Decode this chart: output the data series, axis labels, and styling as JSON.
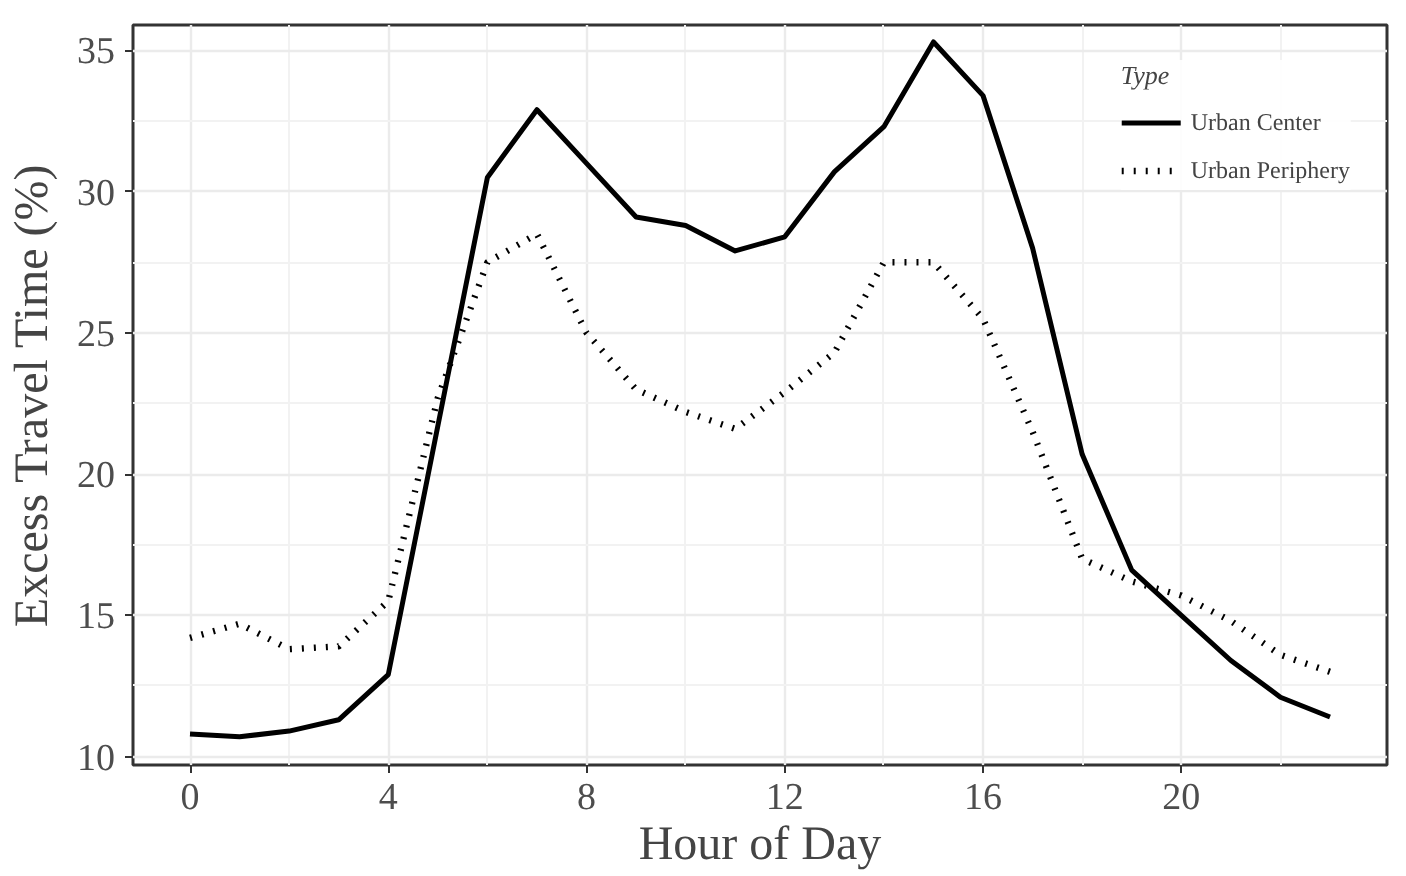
{
  "chart_data": {
    "type": "line",
    "xlabel": "Hour of Day",
    "ylabel": "Excess Travel Time (%)",
    "legend_title": "Type",
    "x": [
      0,
      1,
      2,
      3,
      4,
      5,
      6,
      7,
      8,
      9,
      10,
      11,
      12,
      13,
      14,
      15,
      16,
      17,
      18,
      19,
      20,
      21,
      22,
      23
    ],
    "series": [
      {
        "name": "Urban Center",
        "color": "#000000",
        "line_style": "solid",
        "values": [
          10.8,
          10.7,
          10.9,
          11.3,
          12.9,
          21.7,
          30.5,
          32.9,
          31.0,
          29.1,
          28.8,
          27.9,
          28.4,
          30.7,
          32.3,
          35.3,
          33.4,
          28.0,
          20.7,
          16.6,
          15.0,
          13.4,
          12.1,
          11.4
        ]
      },
      {
        "name": "Urban Periphery",
        "color": "#000000",
        "line_style": "dotted",
        "values": [
          14.2,
          14.7,
          13.8,
          13.9,
          15.5,
          22.7,
          27.5,
          28.5,
          25.0,
          23.0,
          22.2,
          21.6,
          22.9,
          24.3,
          27.5,
          27.5,
          25.5,
          21.5,
          17.0,
          16.2,
          15.7,
          14.8,
          13.6,
          13.0
        ]
      }
    ],
    "xlim": [
      -1.15,
      24.15
    ],
    "ylim": [
      9.7,
      35.9
    ],
    "xticks": [
      0,
      4,
      8,
      12,
      16,
      20
    ],
    "yticks": [
      10,
      15,
      20,
      25,
      30,
      35
    ],
    "grid": true,
    "legend": "top right",
    "marker": "none"
  }
}
